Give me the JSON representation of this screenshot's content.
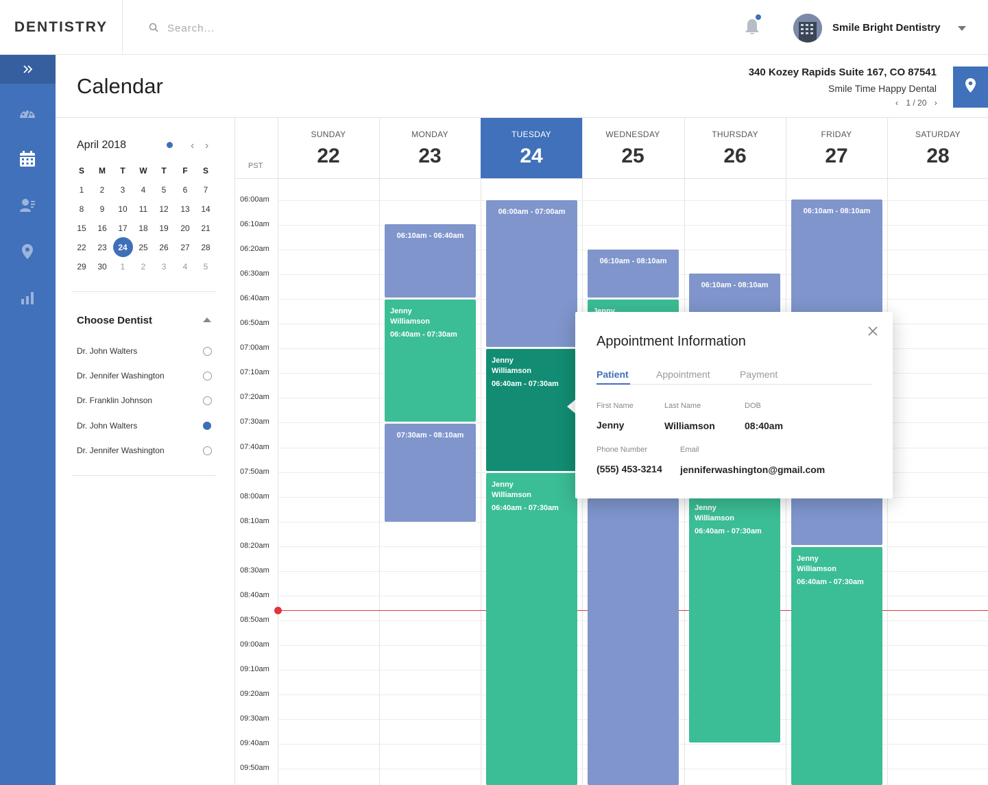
{
  "app": {
    "logo": "DENTISTRY"
  },
  "search": {
    "placeholder": "Search..."
  },
  "user": {
    "clinic_name": "Smile Bright Dentistry"
  },
  "header": {
    "title": "Calendar",
    "address": "340 Kozey Rapids Suite 167, CO 87541",
    "practice": "Smile Time Happy Dental",
    "pager": "1 / 20"
  },
  "sidebar": {
    "items": [
      "dashboard-icon",
      "calendar-icon",
      "patients-icon",
      "location-icon",
      "reports-icon"
    ]
  },
  "mini_calendar": {
    "month": "April 2018",
    "weekdays": [
      "S",
      "M",
      "T",
      "W",
      "T",
      "F",
      "S"
    ],
    "weeks": [
      [
        "1",
        "2",
        "3",
        "4",
        "5",
        "6",
        "7"
      ],
      [
        "8",
        "9",
        "10",
        "11",
        "12",
        "13",
        "14"
      ],
      [
        "15",
        "16",
        "17",
        "18",
        "19",
        "20",
        "21"
      ],
      [
        "22",
        "23",
        "24",
        "25",
        "26",
        "27",
        "28"
      ],
      [
        "29",
        "30",
        "1",
        "2",
        "3",
        "4",
        "5"
      ]
    ],
    "selected": "24"
  },
  "dentists": {
    "label": "Choose Dentist",
    "items": [
      {
        "name": "Dr. John Walters",
        "selected": false
      },
      {
        "name": "Dr. Jennifer Washington",
        "selected": false
      },
      {
        "name": "Dr. Franklin Johnson",
        "selected": false
      },
      {
        "name": "Dr. John Walters",
        "selected": true
      },
      {
        "name": "Dr. Jennifer Washington",
        "selected": false
      }
    ]
  },
  "week": {
    "timezone": "PST",
    "days": [
      {
        "name": "SUNDAY",
        "num": "22",
        "active": false
      },
      {
        "name": "MONDAY",
        "num": "23",
        "active": false
      },
      {
        "name": "TUESDAY",
        "num": "24",
        "active": true
      },
      {
        "name": "WEDNESDAY",
        "num": "25",
        "active": false
      },
      {
        "name": "THURSDAY",
        "num": "26",
        "active": false
      },
      {
        "name": "FRIDAY",
        "num": "27",
        "active": false
      },
      {
        "name": "SATURDAY",
        "num": "28",
        "active": false
      }
    ],
    "times": [
      "06:00am",
      "06:10am",
      "06:20am",
      "06:30am",
      "06:40am",
      "06:50am",
      "07:00am",
      "07:10am",
      "07:20am",
      "07:30am",
      "07:40am",
      "07:50am",
      "08:00am",
      "08:10am",
      "08:20am",
      "08:30am",
      "08:40am",
      "08:50am",
      "09:00am",
      "09:10am",
      "09:20am",
      "09:30am",
      "09:40am",
      "09:50am"
    ]
  },
  "events": {
    "mon_1": {
      "range": "06:10am - 06:40am"
    },
    "mon_2": {
      "name_first": "Jenny",
      "name_last": "Williamson",
      "time": "06:40am - 07:30am"
    },
    "mon_3": {
      "range": "07:30am - 08:10am"
    },
    "tue_1": {
      "range": "06:00am - 07:00am"
    },
    "tue_2": {
      "name_first": "Jenny",
      "name_last": "Williamson",
      "time": "06:40am - 07:30am"
    },
    "tue_3": {
      "name_first": "Jenny",
      "name_last": "Williamson",
      "time": "06:40am - 07:30am"
    },
    "wed_1": {
      "range": "06:10am - 08:10am"
    },
    "wed_2": {
      "name_first": "Jenny"
    },
    "thu_1": {
      "range": "06:10am - 08:10am"
    },
    "thu_2": {
      "name_first": "Jenny",
      "name_last": "Williamson",
      "time": "06:40am - 07:30am"
    },
    "fri_1": {
      "range": "06:10am - 08:10am"
    },
    "fri_2": {
      "name_first": "Jenny",
      "name_last": "Williamson",
      "time": "06:40am - 07:30am"
    }
  },
  "colors": {
    "primary": "#4071ba",
    "event_blue": "#7f95cc",
    "event_green": "#3bbd95",
    "event_dark": "#128d73",
    "now_line": "#e0343f"
  },
  "popup": {
    "title": "Appointment Information",
    "tabs": [
      "Patient",
      "Appointment",
      "Payment"
    ],
    "active_tab": "Patient",
    "labels": {
      "first_name": "First Name",
      "last_name": "Last Name",
      "dob": "DOB",
      "phone": "Phone Number",
      "email": "Email"
    },
    "values": {
      "first_name": "Jenny",
      "last_name": "Williamson",
      "dob": "08:40am",
      "phone": "(555) 453-3214",
      "email": "jenniferwashington@gmail.com"
    }
  }
}
